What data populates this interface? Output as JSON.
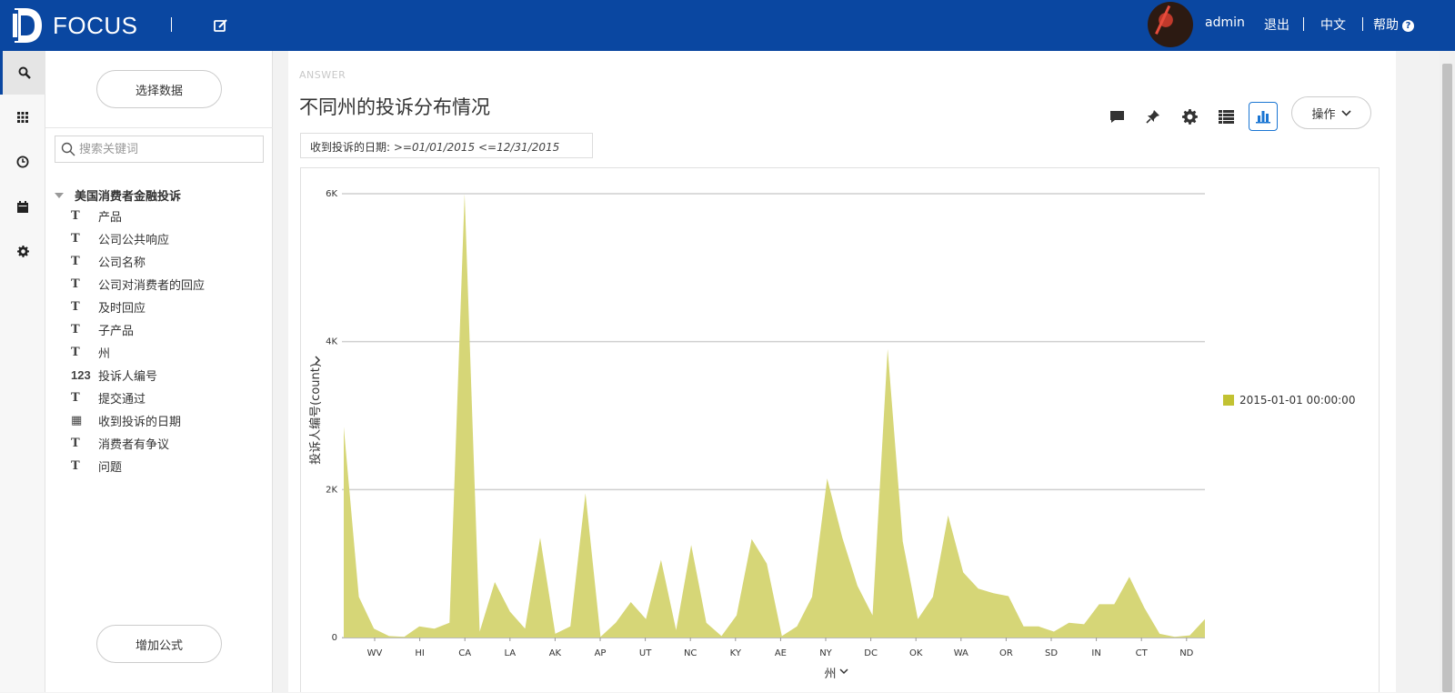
{
  "app": {
    "logo_text": "FOCUS"
  },
  "header": {
    "user": "admin",
    "logout": "退出",
    "language": "中文",
    "help": "帮助"
  },
  "panel": {
    "select_data": "选择数据",
    "search_placeholder": "搜索关键词",
    "source_name": "美国消费者金融投诉",
    "fields": [
      {
        "type": "text",
        "label": "产品"
      },
      {
        "type": "text",
        "label": "公司公共响应"
      },
      {
        "type": "text",
        "label": "公司名称"
      },
      {
        "type": "text",
        "label": "公司对消费者的回应"
      },
      {
        "type": "text",
        "label": "及时回应"
      },
      {
        "type": "text",
        "label": "子产品"
      },
      {
        "type": "text",
        "label": "州"
      },
      {
        "type": "number",
        "label": "投诉人编号"
      },
      {
        "type": "text",
        "label": "提交通过"
      },
      {
        "type": "date",
        "label": "收到投诉的日期"
      },
      {
        "type": "text",
        "label": "消费者有争议"
      },
      {
        "type": "text",
        "label": "问题"
      }
    ],
    "add_formula": "增加公式",
    "type_glyphs": {
      "text": "T",
      "number": "123",
      "date": "▦"
    }
  },
  "main": {
    "answer_label": "ANSWER",
    "title": "不同州的投诉分布情况",
    "filter_label": "收到投诉的日期:",
    "filter_value": ">=01/01/2015  <=12/31/2015",
    "ops_label": "操作"
  },
  "icons": {
    "comment": "comment-icon",
    "pin": "pin-icon",
    "settings": "gear-icon",
    "table": "table-view-icon",
    "chart": "bar-chart-icon"
  },
  "colors": {
    "brand": "#0a47a1",
    "series": "#d6d677",
    "legend_swatch": "#c2c232",
    "accent": "#1b76d3"
  },
  "chart_data": {
    "type": "area",
    "xlabel": "州",
    "ylabel": "投诉人编号(count)",
    "ylim": [
      0,
      6000
    ],
    "y_ticks": [
      0,
      2000,
      4000,
      6000
    ],
    "y_tick_labels": [
      "0",
      "2K",
      "4K",
      "6K"
    ],
    "x_tick_labels": [
      "WV",
      "HI",
      "CA",
      "LA",
      "AK",
      "AP",
      "UT",
      "NC",
      "KY",
      "AE",
      "NY",
      "DC",
      "OK",
      "WA",
      "OR",
      "SD",
      "IN",
      "CT",
      "ND"
    ],
    "legend_position": "right",
    "grid": true,
    "series": [
      {
        "name": "2015-01-01 00:00:00",
        "values": [
          2850,
          550,
          120,
          20,
          10,
          150,
          120,
          200,
          6000,
          80,
          750,
          350,
          120,
          1350,
          50,
          150,
          1950,
          10,
          200,
          480,
          250,
          1050,
          100,
          1250,
          200,
          20,
          300,
          1330,
          1000,
          20,
          150,
          550,
          2150,
          1350,
          700,
          300,
          3900,
          1300,
          250,
          550,
          1650,
          880,
          660,
          600,
          560,
          150,
          150,
          80,
          200,
          180,
          450,
          450,
          820,
          400,
          50,
          10,
          30,
          250
        ]
      }
    ]
  }
}
